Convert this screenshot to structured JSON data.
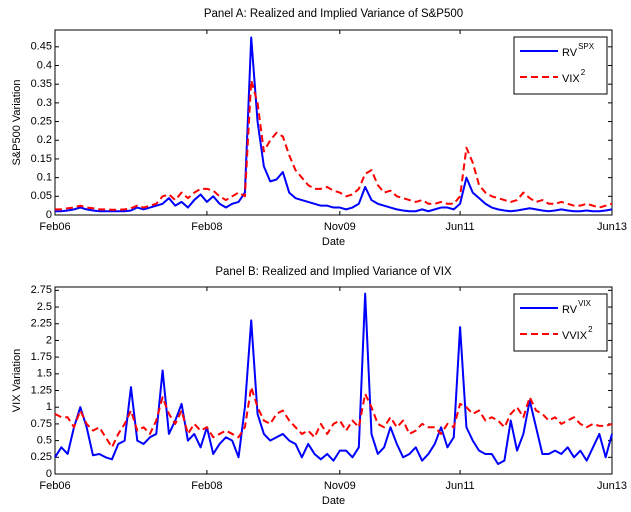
{
  "chart_data": [
    {
      "type": "line",
      "title": "Panel A: Realized and Implied Variance of S&P500",
      "xlabel": "Date",
      "ylabel": "S&P500 Variation",
      "categories": [
        "Feb06",
        null,
        null,
        null,
        null,
        null,
        null,
        null,
        null,
        null,
        null,
        null,
        null,
        null,
        null,
        null,
        null,
        null,
        null,
        null,
        null,
        null,
        null,
        null,
        "Feb08",
        null,
        null,
        null,
        null,
        null,
        null,
        null,
        null,
        null,
        null,
        null,
        null,
        null,
        null,
        null,
        null,
        null,
        null,
        null,
        null,
        "Nov09",
        null,
        null,
        null,
        null,
        null,
        null,
        null,
        null,
        null,
        null,
        null,
        null,
        null,
        null,
        null,
        null,
        null,
        null,
        "Jun11",
        null,
        null,
        null,
        null,
        null,
        null,
        null,
        null,
        null,
        null,
        null,
        null,
        null,
        null,
        null,
        null,
        null,
        null,
        null,
        null,
        null,
        null,
        null,
        "Jun13"
      ],
      "ylim": [
        0,
        0.495
      ],
      "yticks": [
        0,
        0.05,
        0.1,
        0.15,
        0.2,
        0.25,
        0.3,
        0.35,
        0.4,
        0.45
      ],
      "legend": "upper right",
      "series": [
        {
          "name": "RV",
          "sup": "SPX",
          "color": "#0000ff",
          "dashed": false,
          "values": [
            0.01,
            0.01,
            0.012,
            0.015,
            0.02,
            0.015,
            0.012,
            0.01,
            0.01,
            0.01,
            0.01,
            0.01,
            0.012,
            0.02,
            0.015,
            0.02,
            0.025,
            0.03,
            0.045,
            0.025,
            0.035,
            0.02,
            0.04,
            0.055,
            0.035,
            0.05,
            0.03,
            0.02,
            0.03,
            0.035,
            0.06,
            0.475,
            0.25,
            0.13,
            0.09,
            0.095,
            0.115,
            0.06,
            0.045,
            0.04,
            0.035,
            0.03,
            0.025,
            0.025,
            0.02,
            0.02,
            0.015,
            0.02,
            0.03,
            0.075,
            0.04,
            0.03,
            0.025,
            0.02,
            0.015,
            0.012,
            0.01,
            0.01,
            0.015,
            0.01,
            0.015,
            0.02,
            0.02,
            0.015,
            0.03,
            0.1,
            0.06,
            0.045,
            0.03,
            0.02,
            0.015,
            0.012,
            0.01,
            0.012,
            0.015,
            0.018,
            0.015,
            0.012,
            0.01,
            0.012,
            0.015,
            0.012,
            0.01,
            0.01,
            0.012,
            0.01,
            0.01,
            0.012,
            0.015
          ]
        },
        {
          "name": "VIX",
          "sup": "2",
          "color": "#ff0000",
          "dashed": true,
          "values": [
            0.015,
            0.015,
            0.018,
            0.02,
            0.025,
            0.02,
            0.018,
            0.015,
            0.015,
            0.014,
            0.014,
            0.015,
            0.018,
            0.025,
            0.02,
            0.025,
            0.03,
            0.05,
            0.055,
            0.04,
            0.06,
            0.045,
            0.06,
            0.07,
            0.07,
            0.065,
            0.05,
            0.04,
            0.05,
            0.06,
            0.05,
            0.36,
            0.3,
            0.17,
            0.2,
            0.22,
            0.21,
            0.16,
            0.12,
            0.1,
            0.08,
            0.07,
            0.07,
            0.075,
            0.065,
            0.06,
            0.05,
            0.055,
            0.07,
            0.11,
            0.12,
            0.08,
            0.06,
            0.065,
            0.05,
            0.045,
            0.04,
            0.035,
            0.04,
            0.03,
            0.03,
            0.035,
            0.03,
            0.03,
            0.05,
            0.18,
            0.14,
            0.08,
            0.06,
            0.05,
            0.045,
            0.04,
            0.035,
            0.04,
            0.06,
            0.045,
            0.035,
            0.04,
            0.03,
            0.03,
            0.035,
            0.03,
            0.025,
            0.025,
            0.03,
            0.025,
            0.02,
            0.025,
            0.03
          ]
        }
      ]
    },
    {
      "type": "line",
      "title": "Panel B: Realized and Implied Variance of VIX",
      "xlabel": "Date",
      "ylabel": "VIX Variation",
      "categories": [
        "Feb06",
        null,
        null,
        null,
        null,
        null,
        null,
        null,
        null,
        null,
        null,
        null,
        null,
        null,
        null,
        null,
        null,
        null,
        null,
        null,
        null,
        null,
        null,
        null,
        "Feb08",
        null,
        null,
        null,
        null,
        null,
        null,
        null,
        null,
        null,
        null,
        null,
        null,
        null,
        null,
        null,
        null,
        null,
        null,
        null,
        null,
        "Nov09",
        null,
        null,
        null,
        null,
        null,
        null,
        null,
        null,
        null,
        null,
        null,
        null,
        null,
        null,
        null,
        null,
        null,
        null,
        "Jun11",
        null,
        null,
        null,
        null,
        null,
        null,
        null,
        null,
        null,
        null,
        null,
        null,
        null,
        null,
        null,
        null,
        null,
        null,
        null,
        null,
        null,
        null,
        null,
        "Jun13"
      ],
      "ylim": [
        0,
        2.8
      ],
      "yticks": [
        0,
        0.25,
        0.5,
        0.75,
        1,
        1.25,
        1.5,
        1.75,
        2,
        2.25,
        2.5,
        2.75
      ],
      "legend": "upper right",
      "series": [
        {
          "name": "RV",
          "sup": "VIX",
          "color": "#0000ff",
          "dashed": false,
          "values": [
            0.25,
            0.4,
            0.3,
            0.7,
            1.0,
            0.7,
            0.28,
            0.3,
            0.25,
            0.22,
            0.45,
            0.5,
            1.3,
            0.5,
            0.45,
            0.55,
            0.6,
            1.55,
            0.6,
            0.8,
            1.05,
            0.5,
            0.6,
            0.4,
            0.7,
            0.3,
            0.45,
            0.55,
            0.5,
            0.25,
            1.0,
            2.3,
            0.9,
            0.6,
            0.5,
            0.55,
            0.6,
            0.5,
            0.45,
            0.25,
            0.45,
            0.3,
            0.22,
            0.3,
            0.2,
            0.35,
            0.35,
            0.25,
            0.4,
            2.7,
            0.6,
            0.3,
            0.4,
            0.7,
            0.45,
            0.25,
            0.3,
            0.4,
            0.2,
            0.3,
            0.45,
            0.7,
            0.4,
            0.55,
            2.2,
            0.7,
            0.5,
            0.35,
            0.3,
            0.3,
            0.15,
            0.2,
            0.8,
            0.35,
            0.6,
            1.1,
            0.7,
            0.3,
            0.3,
            0.35,
            0.3,
            0.4,
            0.25,
            0.35,
            0.2,
            0.4,
            0.6,
            0.25,
            0.6
          ]
        },
        {
          "name": "VVIX",
          "sup": "2",
          "color": "#ff0000",
          "dashed": true,
          "values": [
            0.9,
            0.85,
            0.85,
            0.7,
            0.95,
            0.75,
            0.65,
            0.7,
            0.55,
            0.4,
            0.6,
            0.75,
            0.95,
            0.65,
            0.7,
            0.6,
            0.8,
            1.15,
            0.9,
            0.75,
            0.95,
            0.6,
            0.75,
            0.65,
            0.7,
            0.55,
            0.6,
            0.65,
            0.6,
            0.55,
            0.7,
            1.3,
            1.0,
            0.8,
            0.75,
            0.9,
            0.95,
            0.8,
            0.7,
            0.6,
            0.65,
            0.55,
            0.75,
            0.6,
            0.75,
            0.8,
            0.65,
            0.8,
            0.7,
            1.2,
            1.0,
            0.75,
            0.7,
            0.85,
            0.7,
            0.8,
            0.6,
            0.65,
            0.75,
            0.7,
            0.7,
            0.6,
            0.75,
            0.7,
            1.05,
            1.0,
            0.9,
            0.95,
            0.8,
            0.85,
            0.8,
            0.7,
            0.9,
            1.0,
            0.85,
            1.15,
            0.95,
            0.9,
            0.8,
            0.85,
            0.75,
            0.8,
            0.85,
            0.75,
            0.7,
            0.75,
            0.72,
            0.72,
            0.75
          ]
        }
      ]
    }
  ]
}
